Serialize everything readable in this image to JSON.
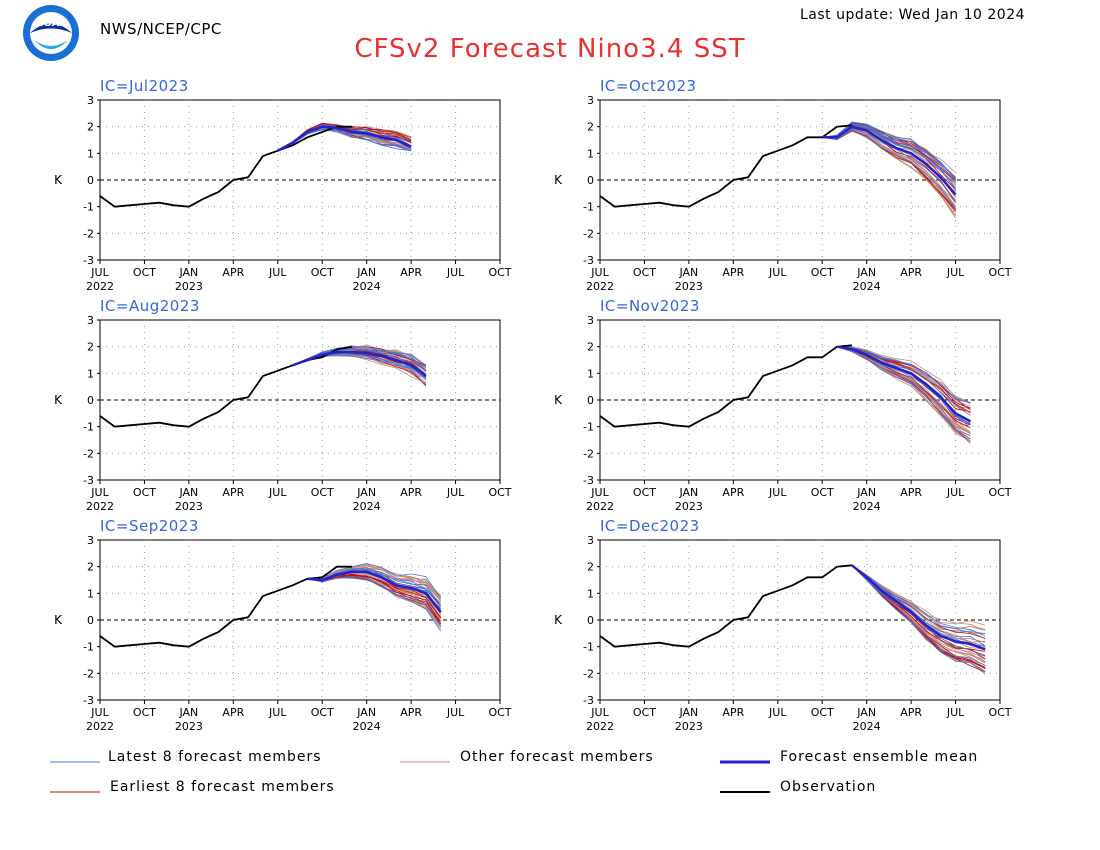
{
  "header": {
    "agency": "NWS/NCEP/CPC",
    "last_update": "Last update: Wed Jan 10 2024",
    "title": "CFSv2 Forecast Nino3.4 SST",
    "logo_text": "NOAA"
  },
  "colors": {
    "title": "#e83030",
    "ic_label": "#3366dd",
    "latest": "#4477dd",
    "other": "#c4897a",
    "mean": "#2222cc",
    "earliest": "#bb1111",
    "observation": "#000000"
  },
  "legend": {
    "latest": "Latest 8 forecast members",
    "other": "Other forecast members",
    "mean": "Forecast ensemble mean",
    "earliest": "Earliest 8 forecast members",
    "observation": "Observation"
  },
  "chart_data": [
    {
      "type": "line",
      "ic_label": "IC=Jul2023",
      "ylabel": "K",
      "ylim": [
        -3,
        3
      ],
      "yticks": [
        3,
        2,
        1,
        0,
        -1,
        -2,
        -3
      ],
      "xlim": [
        "2022-07",
        "2024-10"
      ],
      "xticks": [
        "JUL",
        "OCT",
        "JAN",
        "APR",
        "JUL",
        "OCT",
        "JAN",
        "APR",
        "JUL",
        "OCT"
      ],
      "xticks_year": [
        "2022",
        "",
        "2023",
        "",
        "",
        "",
        "2024",
        "",
        "",
        ""
      ],
      "grid": true,
      "observation": {
        "x": [
          "2022-07",
          "2022-08",
          "2022-09",
          "2022-10",
          "2022-11",
          "2022-12",
          "2023-01",
          "2023-02",
          "2023-03",
          "2023-04",
          "2023-05",
          "2023-06",
          "2023-07",
          "2023-08",
          "2023-09",
          "2023-10",
          "2023-11",
          "2023-12"
        ],
        "y": [
          -0.6,
          -1.0,
          -0.95,
          -0.9,
          -0.85,
          -0.95,
          -1.0,
          -0.7,
          -0.45,
          0.0,
          0.1,
          0.9,
          1.1,
          1.3,
          1.6,
          1.8,
          2.0,
          2.0
        ]
      },
      "ensemble_mean": {
        "x": [
          "2023-07",
          "2023-08",
          "2023-09",
          "2023-10",
          "2023-11",
          "2023-12",
          "2024-01",
          "2024-02",
          "2024-03",
          "2024-04"
        ],
        "y": [
          1.1,
          1.4,
          1.8,
          2.0,
          1.95,
          1.8,
          1.75,
          1.6,
          1.5,
          1.25
        ]
      },
      "spread": [
        1.1,
        2.7
      ]
    },
    {
      "type": "line",
      "ic_label": "IC=Oct2023",
      "ylabel": "K",
      "ylim": [
        -3,
        3
      ],
      "yticks": [
        3,
        2,
        1,
        0,
        -1,
        -2,
        -3
      ],
      "xlim": [
        "2022-07",
        "2024-10"
      ],
      "xticks": [
        "JUL",
        "OCT",
        "JAN",
        "APR",
        "JUL",
        "OCT",
        "JAN",
        "APR",
        "JUL",
        "OCT"
      ],
      "xticks_year": [
        "2022",
        "",
        "2023",
        "",
        "",
        "",
        "2024",
        "",
        "",
        ""
      ],
      "grid": true,
      "observation": {
        "x": [
          "2022-07",
          "2022-08",
          "2022-09",
          "2022-10",
          "2022-11",
          "2022-12",
          "2023-01",
          "2023-02",
          "2023-03",
          "2023-04",
          "2023-05",
          "2023-06",
          "2023-07",
          "2023-08",
          "2023-09",
          "2023-10",
          "2023-11",
          "2023-12"
        ],
        "y": [
          -0.6,
          -1.0,
          -0.95,
          -0.9,
          -0.85,
          -0.95,
          -1.0,
          -0.7,
          -0.45,
          0.0,
          0.1,
          0.9,
          1.1,
          1.3,
          1.6,
          1.6,
          2.0,
          2.05
        ]
      },
      "ensemble_mean": {
        "x": [
          "2023-10",
          "2023-11",
          "2023-12",
          "2024-01",
          "2024-02",
          "2024-03",
          "2024-04",
          "2024-05",
          "2024-06",
          "2024-07"
        ],
        "y": [
          1.6,
          1.6,
          2.0,
          1.85,
          1.5,
          1.2,
          1.0,
          0.6,
          0.1,
          -0.55
        ]
      },
      "spread": [
        -2.3,
        2.2
      ]
    },
    {
      "type": "line",
      "ic_label": "IC=Aug2023",
      "ylabel": "K",
      "ylim": [
        -3,
        3
      ],
      "yticks": [
        3,
        2,
        1,
        0,
        -1,
        -2,
        -3
      ],
      "xlim": [
        "2022-07",
        "2024-10"
      ],
      "xticks": [
        "JUL",
        "OCT",
        "JAN",
        "APR",
        "JUL",
        "OCT",
        "JAN",
        "APR",
        "JUL",
        "OCT"
      ],
      "xticks_year": [
        "2022",
        "",
        "2023",
        "",
        "",
        "",
        "2024",
        "",
        "",
        ""
      ],
      "grid": true,
      "observation": {
        "x": [
          "2022-07",
          "2022-08",
          "2022-09",
          "2022-10",
          "2022-11",
          "2022-12",
          "2023-01",
          "2023-02",
          "2023-03",
          "2023-04",
          "2023-05",
          "2023-06",
          "2023-07",
          "2023-08",
          "2023-09",
          "2023-10",
          "2023-11",
          "2023-12"
        ],
        "y": [
          -0.6,
          -1.0,
          -0.95,
          -0.9,
          -0.85,
          -0.95,
          -1.0,
          -0.7,
          -0.45,
          0.0,
          0.1,
          0.9,
          1.1,
          1.3,
          1.5,
          1.6,
          1.9,
          2.0
        ]
      },
      "ensemble_mean": {
        "x": [
          "2023-08",
          "2023-09",
          "2023-10",
          "2023-11",
          "2023-12",
          "2024-01",
          "2024-02",
          "2024-03",
          "2024-04",
          "2024-05"
        ],
        "y": [
          1.3,
          1.5,
          1.7,
          1.8,
          1.8,
          1.75,
          1.65,
          1.5,
          1.3,
          0.9
        ]
      },
      "spread": [
        0.0,
        2.6
      ]
    },
    {
      "type": "line",
      "ic_label": "IC=Nov2023",
      "ylabel": "K",
      "ylim": [
        -3,
        3
      ],
      "yticks": [
        3,
        2,
        1,
        0,
        -1,
        -2,
        -3
      ],
      "xlim": [
        "2022-07",
        "2024-10"
      ],
      "xticks": [
        "JUL",
        "OCT",
        "JAN",
        "APR",
        "JUL",
        "OCT",
        "JAN",
        "APR",
        "JUL",
        "OCT"
      ],
      "xticks_year": [
        "2022",
        "",
        "2023",
        "",
        "",
        "",
        "2024",
        "",
        "",
        ""
      ],
      "grid": true,
      "observation": {
        "x": [
          "2022-07",
          "2022-08",
          "2022-09",
          "2022-10",
          "2022-11",
          "2022-12",
          "2023-01",
          "2023-02",
          "2023-03",
          "2023-04",
          "2023-05",
          "2023-06",
          "2023-07",
          "2023-08",
          "2023-09",
          "2023-10",
          "2023-11",
          "2023-12"
        ],
        "y": [
          -0.6,
          -1.0,
          -0.95,
          -0.9,
          -0.85,
          -0.95,
          -1.0,
          -0.7,
          -0.45,
          0.0,
          0.1,
          0.9,
          1.1,
          1.3,
          1.6,
          1.6,
          2.0,
          2.05
        ]
      },
      "ensemble_mean": {
        "x": [
          "2023-11",
          "2023-12",
          "2024-01",
          "2024-02",
          "2024-03",
          "2024-04",
          "2024-05",
          "2024-06",
          "2024-07",
          "2024-08"
        ],
        "y": [
          2.0,
          1.9,
          1.7,
          1.4,
          1.2,
          1.0,
          0.6,
          0.1,
          -0.5,
          -0.8
        ]
      },
      "spread": [
        -2.3,
        2.4
      ]
    },
    {
      "type": "line",
      "ic_label": "IC=Sep2023",
      "ylabel": "K",
      "ylim": [
        -3,
        3
      ],
      "yticks": [
        3,
        2,
        1,
        0,
        -1,
        -2,
        -3
      ],
      "xlim": [
        "2022-07",
        "2024-10"
      ],
      "xticks": [
        "JUL",
        "OCT",
        "JAN",
        "APR",
        "JUL",
        "OCT",
        "JAN",
        "APR",
        "JUL",
        "OCT"
      ],
      "xticks_year": [
        "2022",
        "",
        "2023",
        "",
        "",
        "",
        "2024",
        "",
        "",
        ""
      ],
      "grid": true,
      "observation": {
        "x": [
          "2022-07",
          "2022-08",
          "2022-09",
          "2022-10",
          "2022-11",
          "2022-12",
          "2023-01",
          "2023-02",
          "2023-03",
          "2023-04",
          "2023-05",
          "2023-06",
          "2023-07",
          "2023-08",
          "2023-09",
          "2023-10",
          "2023-11",
          "2023-12"
        ],
        "y": [
          -0.6,
          -1.0,
          -0.95,
          -0.9,
          -0.85,
          -0.95,
          -1.0,
          -0.7,
          -0.45,
          0.0,
          0.1,
          0.9,
          1.1,
          1.3,
          1.55,
          1.6,
          2.0,
          2.0
        ]
      },
      "ensemble_mean": {
        "x": [
          "2023-09",
          "2023-10",
          "2023-11",
          "2023-12",
          "2024-01",
          "2024-02",
          "2024-03",
          "2024-04",
          "2024-05",
          "2024-06"
        ],
        "y": [
          1.55,
          1.5,
          1.7,
          1.8,
          1.8,
          1.6,
          1.3,
          1.2,
          1.0,
          0.3
        ]
      },
      "spread": [
        -1.5,
        2.2
      ]
    },
    {
      "type": "line",
      "ic_label": "IC=Dec2023",
      "ylabel": "K",
      "ylim": [
        -3,
        3
      ],
      "yticks": [
        3,
        2,
        1,
        0,
        -1,
        -2,
        -3
      ],
      "xlim": [
        "2022-07",
        "2024-10"
      ],
      "xticks": [
        "JUL",
        "OCT",
        "JAN",
        "APR",
        "JUL",
        "OCT",
        "JAN",
        "APR",
        "JUL",
        "OCT"
      ],
      "xticks_year": [
        "2022",
        "",
        "2023",
        "",
        "",
        "",
        "2024",
        "",
        "",
        ""
      ],
      "grid": true,
      "observation": {
        "x": [
          "2022-07",
          "2022-08",
          "2022-09",
          "2022-10",
          "2022-11",
          "2022-12",
          "2023-01",
          "2023-02",
          "2023-03",
          "2023-04",
          "2023-05",
          "2023-06",
          "2023-07",
          "2023-08",
          "2023-09",
          "2023-10",
          "2023-11",
          "2023-12"
        ],
        "y": [
          -0.6,
          -1.0,
          -0.95,
          -0.9,
          -0.85,
          -0.95,
          -1.0,
          -0.7,
          -0.45,
          0.0,
          0.1,
          0.9,
          1.1,
          1.3,
          1.6,
          1.6,
          2.0,
          2.05
        ]
      },
      "ensemble_mean": {
        "x": [
          "2023-12",
          "2024-01",
          "2024-02",
          "2024-03",
          "2024-04",
          "2024-05",
          "2024-06",
          "2024-07",
          "2024-08",
          "2024-09"
        ],
        "y": [
          2.05,
          1.6,
          1.1,
          0.7,
          0.3,
          -0.2,
          -0.6,
          -0.8,
          -0.9,
          -1.1
        ]
      },
      "spread": [
        -3.0,
        2.05
      ]
    }
  ]
}
